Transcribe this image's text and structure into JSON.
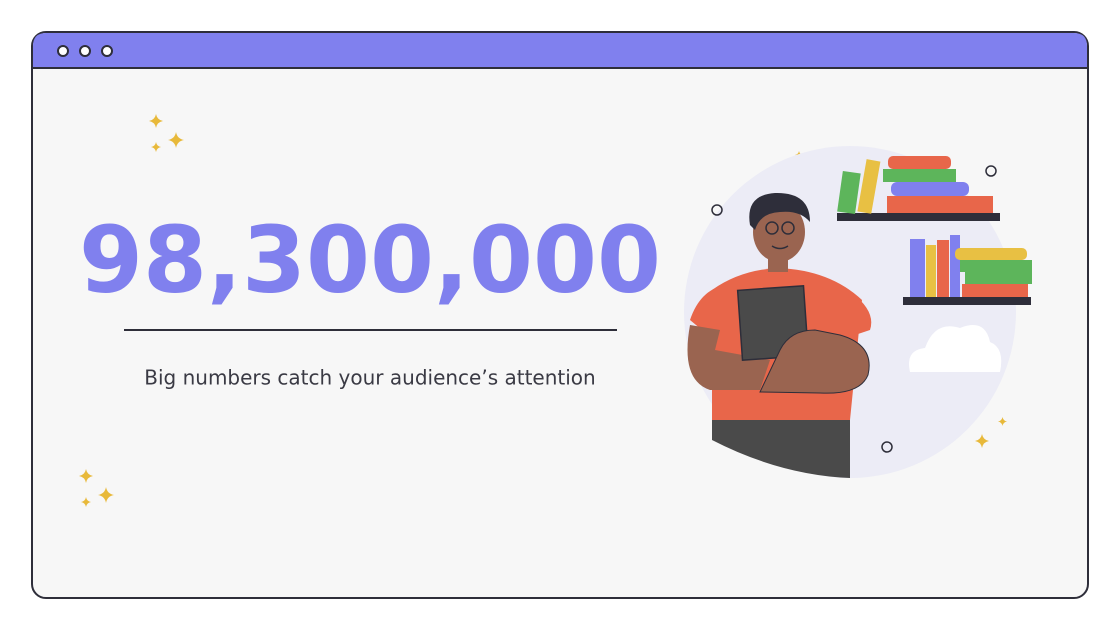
{
  "slide": {
    "big_number": "98,300,000",
    "caption": "Big numbers catch your audience’s attention"
  }
}
